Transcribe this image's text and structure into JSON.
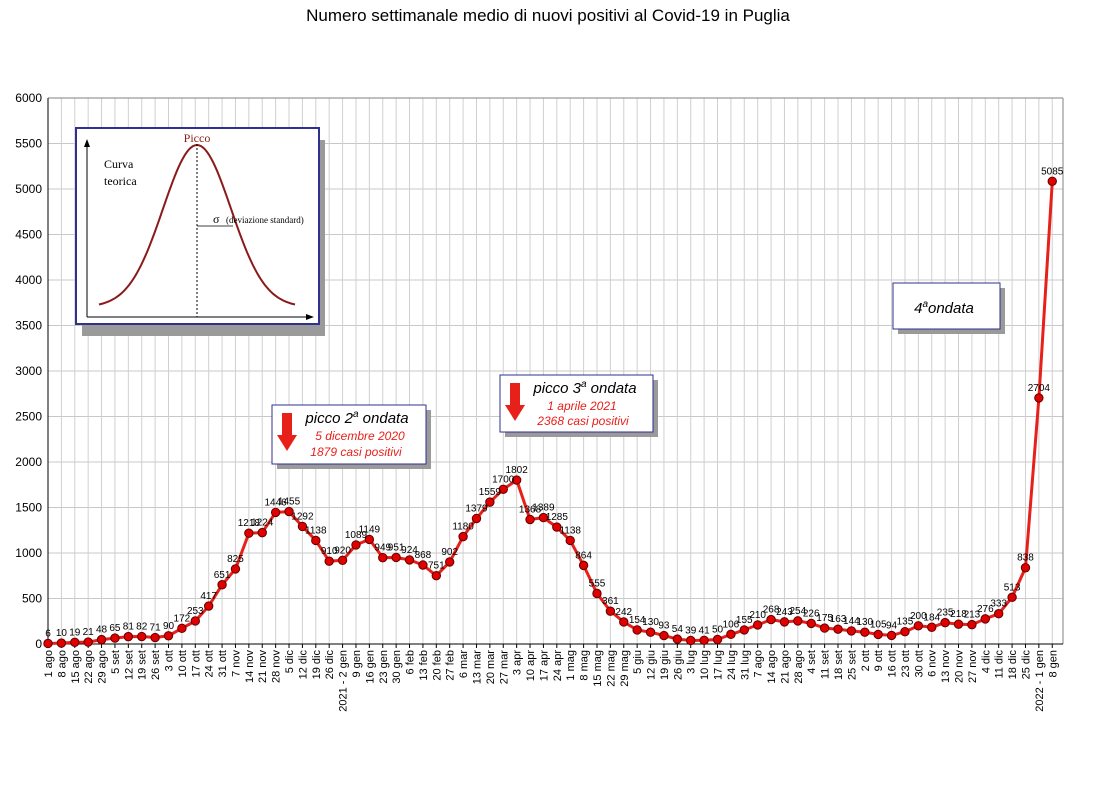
{
  "chart_data": {
    "type": "line",
    "title": "Numero settimanale medio di nuovi positivi al Covid-19 in Puglia",
    "ylim": [
      0,
      6000
    ],
    "yticks": [
      0,
      500,
      1000,
      1500,
      2000,
      2500,
      3000,
      3500,
      4000,
      4500,
      5000,
      5500,
      6000
    ],
    "grid": true,
    "series_color": "#e8201a",
    "marker_color": "#e00000",
    "categories": [
      "1 ago",
      "8 ago",
      "15 ago",
      "22 ago",
      "29 ago",
      "5 set",
      "12 set",
      "19 set",
      "26 set",
      "3 ott",
      "10 ott",
      "17 ott",
      "24 ott",
      "31 ott",
      "7 nov",
      "14 nov",
      "21 nov",
      "28 nov",
      "5 dic",
      "12 dic",
      "19 dic",
      "26 dic",
      "2021 - 2 gen",
      "9 gen",
      "16 gen",
      "23 gen",
      "30 gen",
      "6 feb",
      "13 feb",
      "20 feb",
      "27 feb",
      "6 mar",
      "13 mar",
      "20 mar",
      "27 mar",
      "3 apr",
      "10 apr",
      "17 apr",
      "24 apr",
      "1 mag",
      "8 mag",
      "15 mag",
      "22 mag",
      "29 mag",
      "5 giu",
      "12 giu",
      "19 giu",
      "26 giu",
      "3 lug",
      "10 lug",
      "17 lug",
      "24 lug",
      "31 lug",
      "7 ago",
      "14 ago",
      "21 ago",
      "28 ago",
      "4 set",
      "11 set",
      "18 set",
      "25 set",
      "2 ott",
      "9 ott",
      "16 ott",
      "23 ott",
      "30 ott",
      "6 nov",
      "13 nov",
      "20 nov",
      "27 nov",
      "4 dic",
      "11 dic",
      "18 dic",
      "25 dic",
      "2022 - 1 gen",
      "8 gen"
    ],
    "values": [
      6,
      10,
      19,
      21,
      48,
      65,
      81,
      82,
      71,
      90,
      172,
      253,
      417,
      651,
      825,
      1218,
      1224,
      1446,
      1455,
      1292,
      1138,
      910,
      920,
      1089,
      1149,
      949,
      951,
      924,
      868,
      751,
      902,
      1180,
      1379,
      1559,
      1700,
      1802,
      1368,
      1389,
      1285,
      1138,
      864,
      555,
      361,
      242,
      154,
      130,
      93,
      54,
      39,
      41,
      50,
      106,
      155,
      210,
      268,
      243,
      254,
      226,
      175,
      163,
      144,
      130,
      105,
      94,
      135,
      200,
      184,
      235,
      218,
      213,
      276,
      333,
      513,
      838,
      2704,
      5085
    ],
    "labels": [
      "6",
      "10",
      "19",
      "21",
      "48",
      "65",
      "81",
      "82",
      "71",
      "90",
      "172",
      "253",
      "417",
      "651",
      "825",
      "1218",
      "1224",
      "1446",
      "1455",
      "1292",
      "1138",
      "910",
      "920",
      "1089",
      "1149",
      "949",
      "951",
      "924",
      "868",
      "751",
      "902",
      "1180",
      "1379",
      "1559",
      "1700",
      "1802",
      "1368",
      "1389",
      "1285",
      "1138",
      "864",
      "555",
      "361",
      "242",
      "154",
      "130",
      "93",
      "54",
      "39",
      "41",
      "50",
      "106",
      "155",
      "210",
      "268",
      "243",
      "254",
      "226",
      "175",
      "163",
      "144",
      "130",
      "105",
      "94",
      "135",
      "200",
      "184",
      "235",
      "218",
      "213",
      "276",
      "333",
      "513",
      "838",
      "2704",
      "5085"
    ],
    "annotations": [
      {
        "title_base": "picco 2",
        "title_sup": "a",
        "title_tail": " ondata",
        "line1": "5 dicembre 2020",
        "line2": "1879 casi positivi"
      },
      {
        "title_base": "picco 3",
        "title_sup": "a",
        "title_tail": " ondata",
        "line1": "1 aprile 2021",
        "line2": "2368 casi positivi"
      },
      {
        "title_base": "4",
        "title_sup": "a",
        "title_tail": "ondata"
      }
    ],
    "inset": {
      "peak_label": "Picco",
      "curve_label_1": "Curva",
      "curve_label_2": "teorica",
      "sigma_label": "σ",
      "sigma_note": "(deviazione standard)"
    }
  }
}
